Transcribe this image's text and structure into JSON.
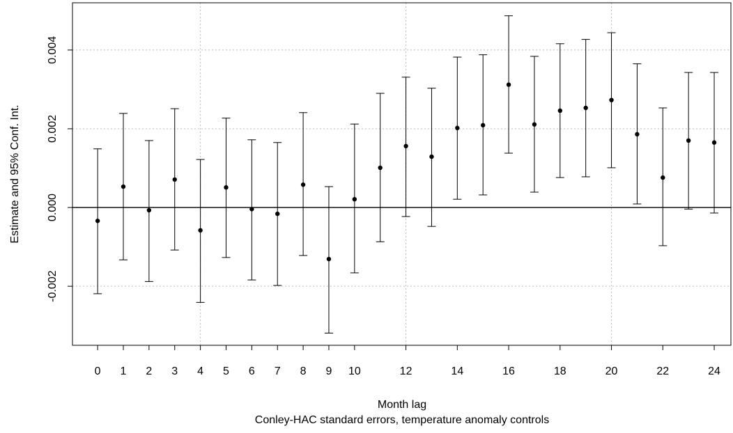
{
  "chart_data": {
    "type": "errorbar",
    "x_label": "Month lag",
    "subtitle": "Conley-HAC standard errors, temperature anomaly controls",
    "y_label": "Estimate and 95% Conf. Int.",
    "x": [
      0,
      1,
      2,
      3,
      4,
      5,
      6,
      7,
      8,
      9,
      10,
      11,
      12,
      13,
      14,
      15,
      16,
      17,
      18,
      19,
      20,
      21,
      22,
      23,
      24
    ],
    "values": [
      -0.00034,
      0.00053,
      -7e-05,
      0.00071,
      -0.00058,
      0.00051,
      -4e-05,
      -0.00016,
      0.00058,
      -0.00131,
      0.00021,
      0.00101,
      0.00156,
      0.00129,
      0.00202,
      0.00209,
      0.00312,
      0.00211,
      0.00246,
      0.00253,
      0.00273,
      0.00186,
      0.00076,
      0.0017,
      0.00165
    ],
    "lower": [
      -0.00219,
      -0.00133,
      -0.00188,
      -0.00108,
      -0.00241,
      -0.00127,
      -0.00184,
      -0.00198,
      -0.00122,
      -0.00319,
      -0.00166,
      -0.00087,
      -0.00023,
      -0.00048,
      0.00021,
      0.00032,
      0.00138,
      0.00039,
      0.00076,
      0.00078,
      0.00101,
      9e-05,
      -0.00097,
      -4e-05,
      -0.00014
    ],
    "upper": [
      0.00149,
      0.00239,
      0.0017,
      0.00251,
      0.00122,
      0.00227,
      0.00172,
      0.00165,
      0.00241,
      0.00053,
      0.00212,
      0.0029,
      0.00331,
      0.00303,
      0.00382,
      0.00388,
      0.00487,
      0.00384,
      0.00416,
      0.00427,
      0.00444,
      0.00365,
      0.00253,
      0.00343,
      0.00343
    ],
    "color": "#000000",
    "xlim": [
      -0.98,
      24.65
    ],
    "ylim": [
      -0.0035,
      0.0052
    ],
    "xticks": [
      0,
      1,
      2,
      3,
      4,
      5,
      6,
      7,
      8,
      9,
      10,
      12,
      14,
      16,
      18,
      20,
      22,
      24
    ],
    "yticks": [
      -0.002,
      {
        "value": 0,
        "label": "0.000"
      },
      0.002,
      0.004
    ],
    "xgrid": [
      4,
      12,
      20
    ],
    "hline": 0,
    "grid": true
  }
}
